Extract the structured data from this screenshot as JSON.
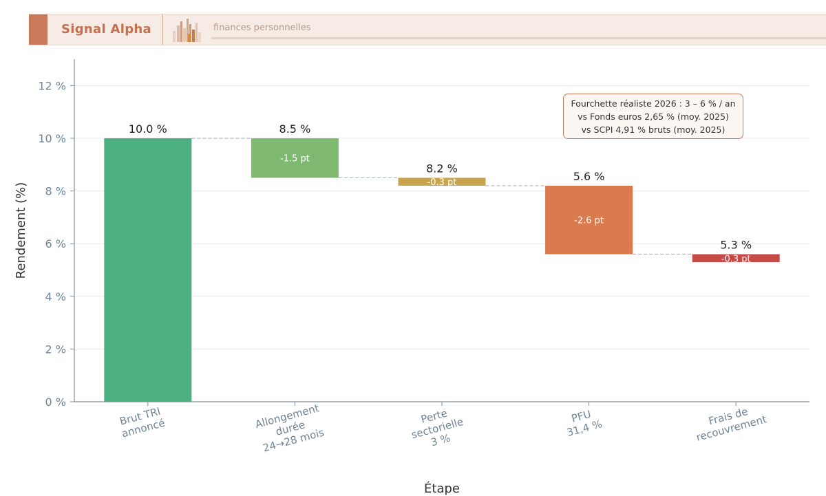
{
  "header": {
    "brand": "Signal Alpha",
    "tagline": "finances personnelles",
    "colors": {
      "banner_bg": "#f6ebe5",
      "accent": "#c97a5b",
      "brand_text": "#c46f4f"
    }
  },
  "chart_data": {
    "type": "waterfall",
    "title": "",
    "xlabel": "Étape",
    "ylabel": "Rendement (%)",
    "ylim": [
      0,
      13
    ],
    "yticks": [
      0,
      2,
      4,
      6,
      8,
      10,
      12
    ],
    "ytick_labels": [
      "0 %",
      "2 %",
      "4 %",
      "6 %",
      "8 %",
      "10 %",
      "12 %"
    ],
    "grid": true,
    "steps": [
      {
        "category": [
          "Brut TRI",
          "annoncé"
        ],
        "start": 0,
        "end": 10.0,
        "total_label": "10.0 %",
        "delta_label": "",
        "color": "#4caf80"
      },
      {
        "category": [
          "Allongement",
          "durée",
          "24→28 mois"
        ],
        "start": 10.0,
        "end": 8.5,
        "total_label": "8.5 %",
        "delta_label": "-1.5 pt",
        "color": "#7fb971"
      },
      {
        "category": [
          "Perte",
          "sectorielle",
          "3 %"
        ],
        "start": 8.5,
        "end": 8.2,
        "total_label": "8.2 %",
        "delta_label": "-0.3 pt",
        "color": "#c9a44f"
      },
      {
        "category": [
          "PFU",
          "31,4 %"
        ],
        "start": 8.2,
        "end": 5.6,
        "total_label": "5.6 %",
        "delta_label": "-2.6 pt",
        "color": "#da7a4f"
      },
      {
        "category": [
          "Frais de",
          "recouvrement"
        ],
        "start": 5.6,
        "end": 5.3,
        "total_label": "5.3 %",
        "delta_label": "-0.3 pt",
        "color": "#c64b47"
      }
    ],
    "annotation": [
      "Fourchette réaliste 2026 : 3 – 6 % / an",
      "vs Fonds euros 2,65 % (moy. 2025)",
      "vs SCPI 4,91 % bruts (moy. 2025)"
    ]
  }
}
